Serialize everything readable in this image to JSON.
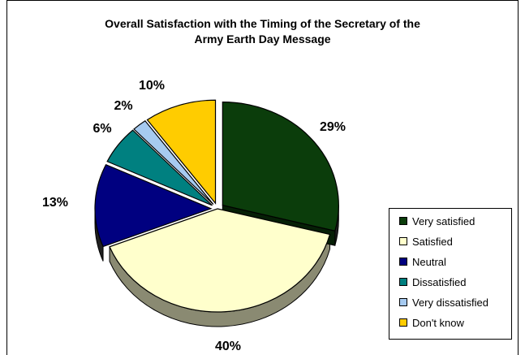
{
  "chart_data": {
    "type": "pie",
    "title_lines": [
      "Overall Satisfaction with the Timing of the Secretary of the",
      "Army Earth Day Message"
    ],
    "slices": [
      {
        "label": "Very satisfied",
        "value": 29,
        "label_text": "29%",
        "color": "#0b3d0b"
      },
      {
        "label": "Satisfied",
        "value": 40,
        "label_text": "40%",
        "color": "#ffffcc"
      },
      {
        "label": "Neutral",
        "value": 13,
        "label_text": "13%",
        "color": "#000080"
      },
      {
        "label": "Dissatisfied",
        "value": 6,
        "label_text": "6%",
        "color": "#008080"
      },
      {
        "label": "Very dissatisfied",
        "value": 2,
        "label_text": "2%",
        "color": "#a6caf0"
      },
      {
        "label": "Don't know",
        "value": 10,
        "label_text": "10%",
        "color": "#ffcc00"
      }
    ],
    "legend_position": "bottom-right"
  }
}
